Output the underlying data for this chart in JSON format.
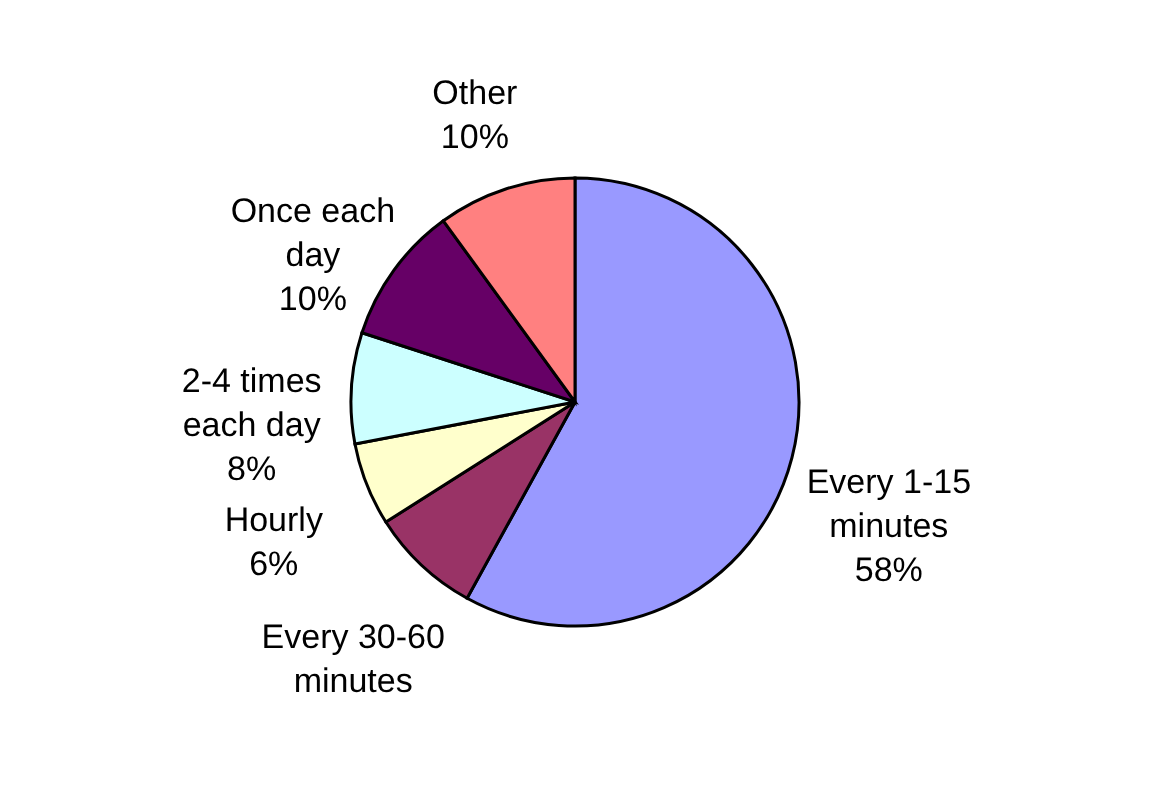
{
  "chart_data": {
    "type": "pie",
    "categories": [
      "Every 1-15\nminutes",
      "Every 30-60\nminutes",
      "Hourly",
      "2-4 times\neach day",
      "Once each\nday",
      "Other"
    ],
    "values": [
      58,
      8,
      6,
      8,
      10,
      10
    ],
    "value_labels": [
      "58%",
      null,
      "6%",
      "8%",
      "10%",
      "10%"
    ],
    "colors": [
      "#9999ff",
      "#993366",
      "#ffffcc",
      "#ccffff",
      "#660066",
      "#ff8080"
    ]
  }
}
